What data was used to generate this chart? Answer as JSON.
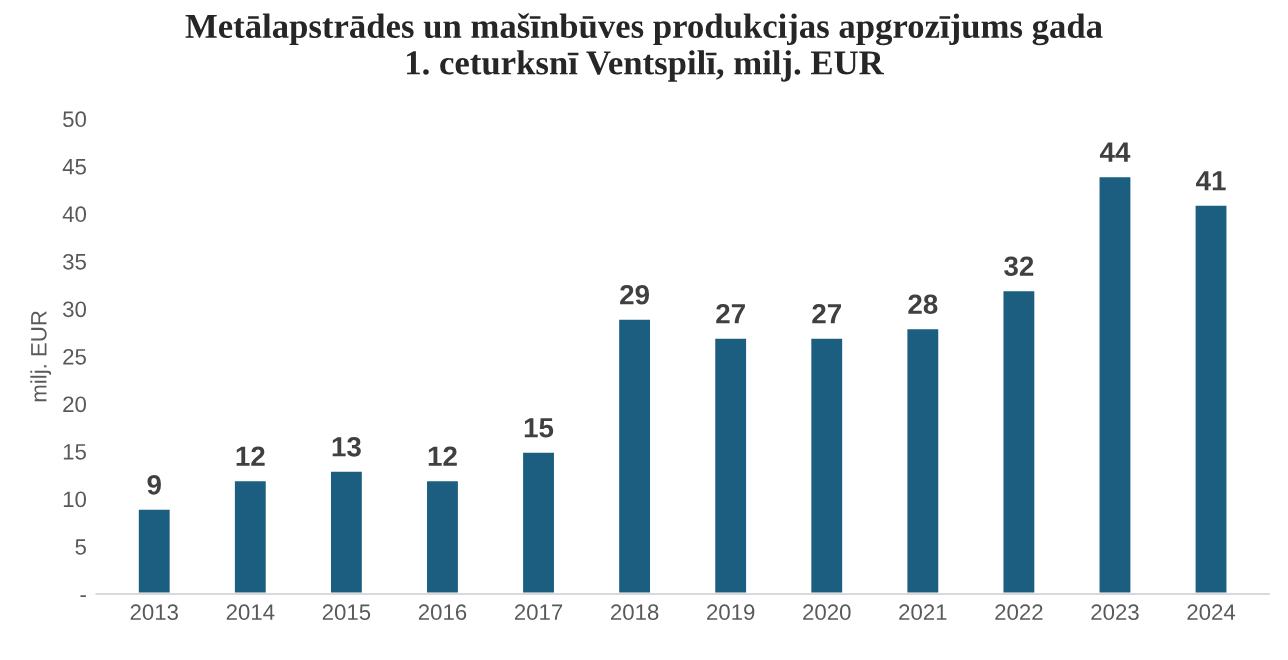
{
  "chart_data": {
    "type": "bar",
    "title": "Metālapstrādes un mašīnbūves produkcijas apgrozījums gada\n1. ceturksnī Ventspilī, milj. EUR",
    "ylabel": "milj. EUR",
    "categories": [
      "2013",
      "2014",
      "2015",
      "2016",
      "2017",
      "2018",
      "2019",
      "2020",
      "2021",
      "2022",
      "2023",
      "2024"
    ],
    "values": [
      9,
      12,
      13,
      12,
      15,
      29,
      27,
      27,
      28,
      32,
      44,
      41
    ],
    "color": "#1b5e80",
    "data_labels": true,
    "grid": false,
    "legend": false,
    "ylim": [
      0,
      50
    ],
    "yticks": [
      {
        "value": 0,
        "label": "-"
      },
      5,
      10,
      15,
      20,
      25,
      30,
      35,
      40,
      45,
      50
    ]
  }
}
